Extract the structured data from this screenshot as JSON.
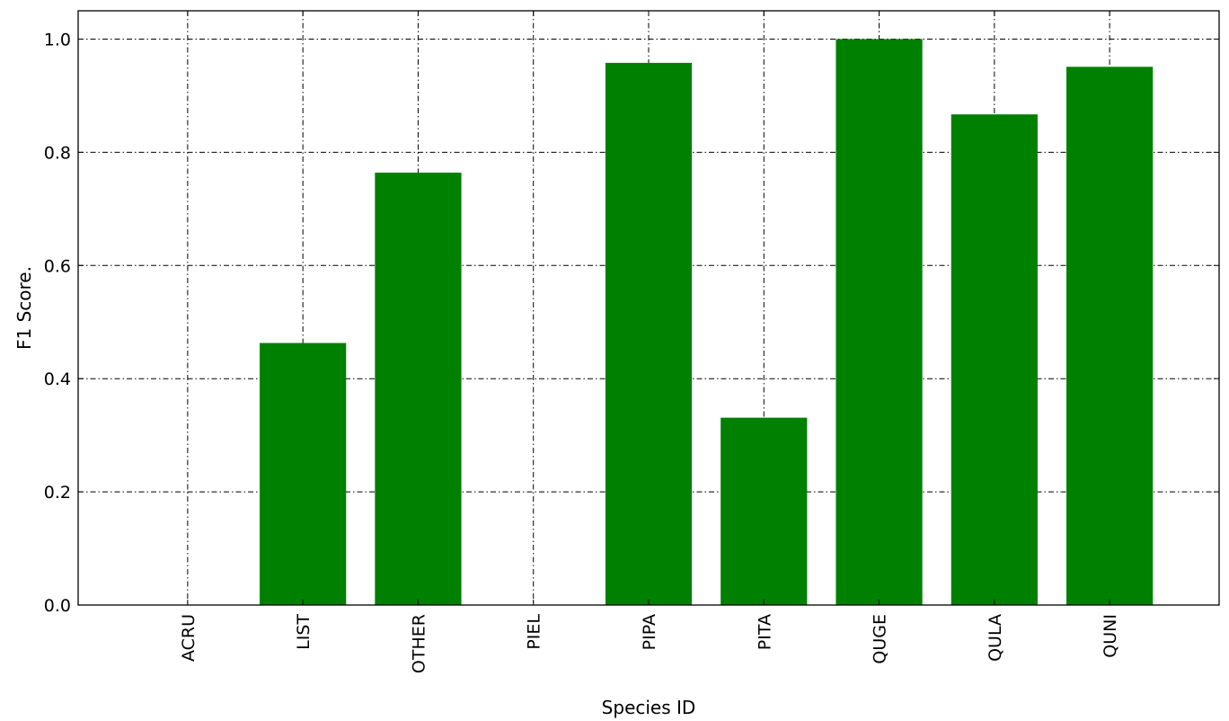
{
  "chart_data": {
    "type": "bar",
    "title": "",
    "xlabel": "Species ID",
    "ylabel": "F1 Score.",
    "categories": [
      "ACRU",
      "LIST",
      "OTHER",
      "PIEL",
      "PIPA",
      "PITA",
      "QUGE",
      "QULA",
      "QUNI"
    ],
    "values": [
      0.0,
      0.463,
      0.764,
      0.0,
      0.958,
      0.331,
      1.0,
      0.867,
      0.951
    ],
    "ylim": [
      0.0,
      1.05
    ],
    "yticks": [
      "0.0",
      "0.2",
      "0.4",
      "0.6",
      "0.8",
      "1.0"
    ],
    "grid": true,
    "grid_style": "dash-dot",
    "bar_color": "#008000",
    "legend": "none"
  }
}
